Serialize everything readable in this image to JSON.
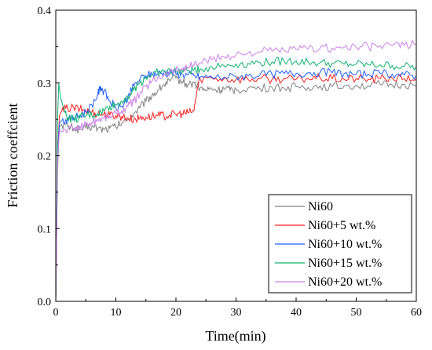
{
  "chart_data": {
    "type": "line",
    "xlabel": "Time(min)",
    "ylabel": "Friction coeffcient",
    "xlim": [
      0,
      60
    ],
    "ylim": [
      0,
      0.4
    ],
    "x_ticks": [
      "0",
      "10",
      "20",
      "30",
      "40",
      "50",
      "60"
    ],
    "y_ticks": [
      "0.0",
      "0.1",
      "0.2",
      "0.3",
      "0.4"
    ],
    "grid": false,
    "legend_position": "bottom-right",
    "series": [
      {
        "name": "Ni60",
        "color": "#808080",
        "x": [
          0,
          0.3,
          0.6,
          1,
          2,
          3,
          4,
          5,
          6,
          7,
          8,
          9,
          10,
          11,
          12,
          13,
          14,
          15,
          16,
          17,
          18,
          19,
          20,
          21,
          22,
          23,
          24,
          25,
          26,
          27,
          28,
          29,
          30,
          32,
          34,
          36,
          38,
          40,
          42,
          44,
          46,
          48,
          50,
          52,
          54,
          56,
          58,
          60
        ],
        "y": [
          0.0,
          0.18,
          0.24,
          0.243,
          0.24,
          0.238,
          0.236,
          0.238,
          0.24,
          0.238,
          0.236,
          0.238,
          0.24,
          0.245,
          0.25,
          0.258,
          0.266,
          0.275,
          0.283,
          0.29,
          0.298,
          0.303,
          0.307,
          0.302,
          0.298,
          0.3,
          0.293,
          0.29,
          0.292,
          0.29,
          0.292,
          0.29,
          0.291,
          0.293,
          0.292,
          0.294,
          0.293,
          0.295,
          0.294,
          0.296,
          0.295,
          0.296,
          0.297,
          0.296,
          0.298,
          0.297,
          0.298,
          0.296
        ]
      },
      {
        "name": "Ni60+5 wt.%",
        "color": "#ff2020",
        "x": [
          0,
          0.3,
          0.6,
          1,
          2,
          3,
          4,
          5,
          6,
          7,
          8,
          9,
          10,
          11,
          12,
          13,
          14,
          15,
          16,
          17,
          18,
          19,
          20,
          21,
          22,
          23,
          23.5,
          24,
          26,
          28,
          30,
          32,
          34,
          36,
          38,
          40,
          42,
          44,
          46,
          48,
          50,
          52,
          54,
          56,
          58,
          60
        ],
        "y": [
          0.0,
          0.2,
          0.255,
          0.262,
          0.265,
          0.266,
          0.264,
          0.262,
          0.26,
          0.258,
          0.257,
          0.256,
          0.255,
          0.254,
          0.252,
          0.25,
          0.252,
          0.253,
          0.254,
          0.255,
          0.255,
          0.256,
          0.257,
          0.258,
          0.259,
          0.262,
          0.29,
          0.306,
          0.307,
          0.306,
          0.305,
          0.305,
          0.306,
          0.305,
          0.306,
          0.305,
          0.306,
          0.307,
          0.306,
          0.305,
          0.306,
          0.305,
          0.306,
          0.307,
          0.306,
          0.305
        ]
      },
      {
        "name": "Ni60+10 wt.%",
        "color": "#1f5fff",
        "x": [
          0,
          0.3,
          0.6,
          1,
          2,
          3,
          4,
          5,
          6,
          7,
          7.5,
          8,
          9,
          10,
          11,
          12,
          13,
          14,
          15,
          16,
          17,
          18,
          19,
          20,
          21,
          22,
          23,
          24,
          26,
          28,
          30,
          32,
          34,
          36,
          38,
          40,
          42,
          44,
          46,
          48,
          50,
          52,
          54,
          56,
          58,
          60
        ],
        "y": [
          0.0,
          0.2,
          0.245,
          0.248,
          0.25,
          0.252,
          0.255,
          0.26,
          0.27,
          0.285,
          0.295,
          0.288,
          0.275,
          0.265,
          0.268,
          0.28,
          0.296,
          0.305,
          0.31,
          0.312,
          0.313,
          0.314,
          0.314,
          0.313,
          0.312,
          0.311,
          0.31,
          0.308,
          0.308,
          0.308,
          0.309,
          0.31,
          0.311,
          0.312,
          0.313,
          0.313,
          0.314,
          0.315,
          0.314,
          0.313,
          0.312,
          0.312,
          0.313,
          0.312,
          0.311,
          0.31
        ]
      },
      {
        "name": "Ni60+15 wt.%",
        "color": "#10b070",
        "x": [
          0,
          0.3,
          0.5,
          0.8,
          1.5,
          2,
          3,
          4,
          5,
          6,
          7,
          8,
          9,
          10,
          11,
          12,
          13,
          14,
          15,
          16,
          17,
          18,
          19,
          20,
          21,
          22,
          23,
          24,
          26,
          28,
          30,
          32,
          34,
          36,
          38,
          40,
          42,
          44,
          46,
          48,
          50,
          52,
          54,
          56,
          58,
          60
        ],
        "y": [
          0.0,
          0.25,
          0.3,
          0.28,
          0.26,
          0.252,
          0.25,
          0.252,
          0.255,
          0.256,
          0.258,
          0.262,
          0.268,
          0.27,
          0.275,
          0.282,
          0.29,
          0.3,
          0.308,
          0.312,
          0.314,
          0.315,
          0.316,
          0.316,
          0.317,
          0.317,
          0.318,
          0.319,
          0.322,
          0.324,
          0.326,
          0.327,
          0.328,
          0.329,
          0.33,
          0.33,
          0.329,
          0.328,
          0.327,
          0.326,
          0.326,
          0.325,
          0.325,
          0.324,
          0.323,
          0.322
        ]
      },
      {
        "name": "Ni60+20 wt.%",
        "color": "#cc80e8",
        "x": [
          0,
          0.3,
          0.6,
          1,
          2,
          3,
          4,
          5,
          6,
          7,
          8,
          9,
          10,
          11,
          12,
          13,
          14,
          15,
          16,
          17,
          18,
          19,
          20,
          21,
          22,
          23,
          24,
          26,
          28,
          30,
          32,
          34,
          36,
          38,
          40,
          42,
          44,
          46,
          48,
          50,
          52,
          54,
          56,
          58,
          60
        ],
        "y": [
          0.0,
          0.2,
          0.232,
          0.234,
          0.236,
          0.238,
          0.24,
          0.243,
          0.246,
          0.25,
          0.252,
          0.255,
          0.258,
          0.262,
          0.268,
          0.275,
          0.285,
          0.295,
          0.302,
          0.308,
          0.312,
          0.315,
          0.318,
          0.32,
          0.322,
          0.325,
          0.328,
          0.332,
          0.336,
          0.339,
          0.341,
          0.343,
          0.344,
          0.345,
          0.346,
          0.347,
          0.348,
          0.348,
          0.349,
          0.349,
          0.35,
          0.351,
          0.352,
          0.352,
          0.353
        ]
      }
    ]
  }
}
